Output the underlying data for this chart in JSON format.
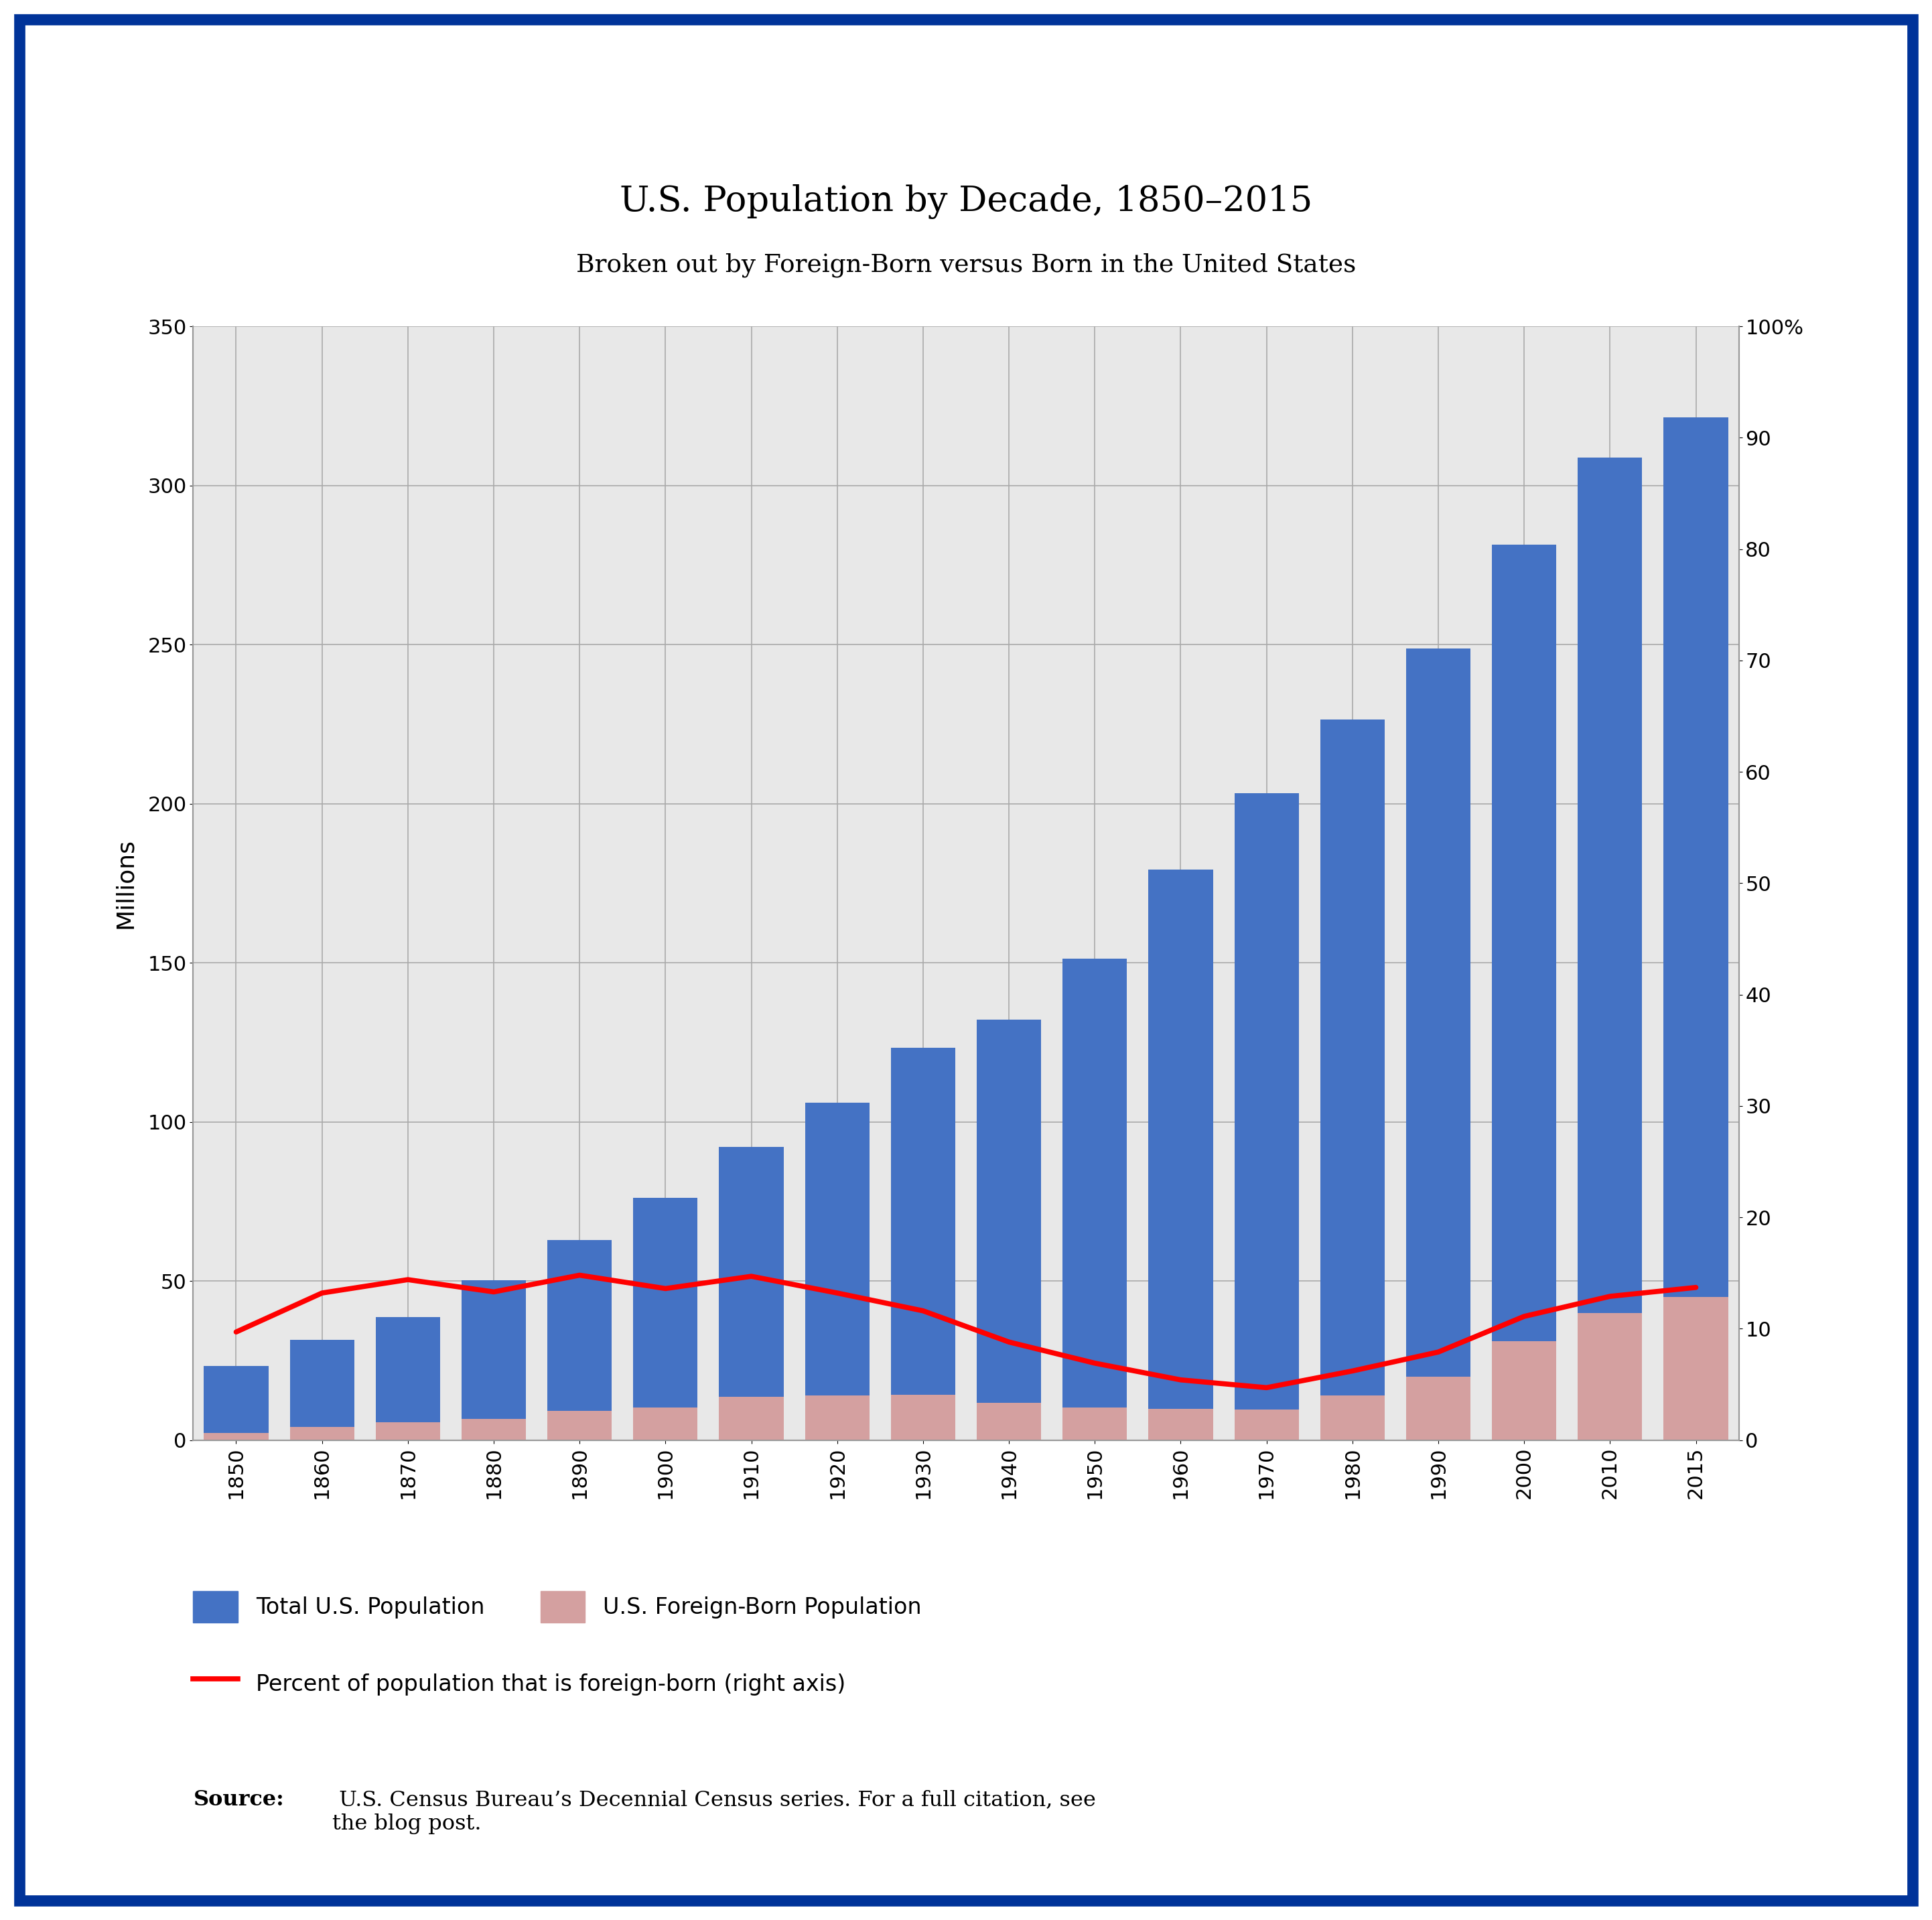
{
  "years": [
    1850,
    1860,
    1870,
    1880,
    1890,
    1900,
    1910,
    1920,
    1930,
    1940,
    1950,
    1960,
    1970,
    1980,
    1990,
    2000,
    2010,
    2015
  ],
  "total_pop": [
    23.2,
    31.4,
    38.6,
    50.2,
    62.9,
    76.2,
    92.2,
    106.0,
    123.2,
    132.2,
    151.3,
    179.3,
    203.2,
    226.5,
    248.7,
    281.4,
    308.7,
    321.4
  ],
  "foreign_born": [
    2.2,
    4.1,
    5.6,
    6.7,
    9.2,
    10.3,
    13.5,
    13.9,
    14.2,
    11.6,
    10.3,
    9.7,
    9.6,
    14.1,
    19.8,
    31.1,
    40.0,
    45.0
  ],
  "pct_foreign": [
    9.7,
    13.2,
    14.4,
    13.3,
    14.8,
    13.6,
    14.7,
    13.2,
    11.6,
    8.8,
    6.9,
    5.4,
    4.7,
    6.2,
    7.9,
    11.1,
    12.9,
    13.7
  ],
  "bar_color_total": "#4472C4",
  "bar_color_foreign": "#D4A0A0",
  "line_color": "#FF0000",
  "background_color": "#E8E8E8",
  "outer_background": "#FFFFFF",
  "border_color": "#003399",
  "title": "U.S. Population by Decade, 1850–2015",
  "subtitle": "Broken out by Foreign-Born versus Born in the United States",
  "ylabel_left": "Millions",
  "ylim_left": [
    0,
    350
  ],
  "ylim_right": [
    0,
    100
  ],
  "yticks_left": [
    0,
    50,
    100,
    150,
    200,
    250,
    300,
    350
  ],
  "yticks_right": [
    0,
    10,
    20,
    30,
    40,
    50,
    60,
    70,
    80,
    90,
    100
  ],
  "ytick_right_labels": [
    "0",
    "10",
    "20",
    "30",
    "40",
    "50",
    "60",
    "70",
    "80",
    "90",
    "100%"
  ],
  "legend1": "Total U.S. Population",
  "legend2": "U.S. Foreign-Born Population",
  "legend3": "Percent of population that is foreign-born (right axis)",
  "source_bold": "Source:",
  "source_rest": " U.S. Census Bureau’s Decennial Census series. For a full citation, see\nthe blog post.",
  "title_fontsize": 38,
  "subtitle_fontsize": 27,
  "axis_label_fontsize": 24,
  "tick_fontsize": 22,
  "legend_fontsize": 24,
  "source_fontsize": 23,
  "border_linewidth": 12
}
